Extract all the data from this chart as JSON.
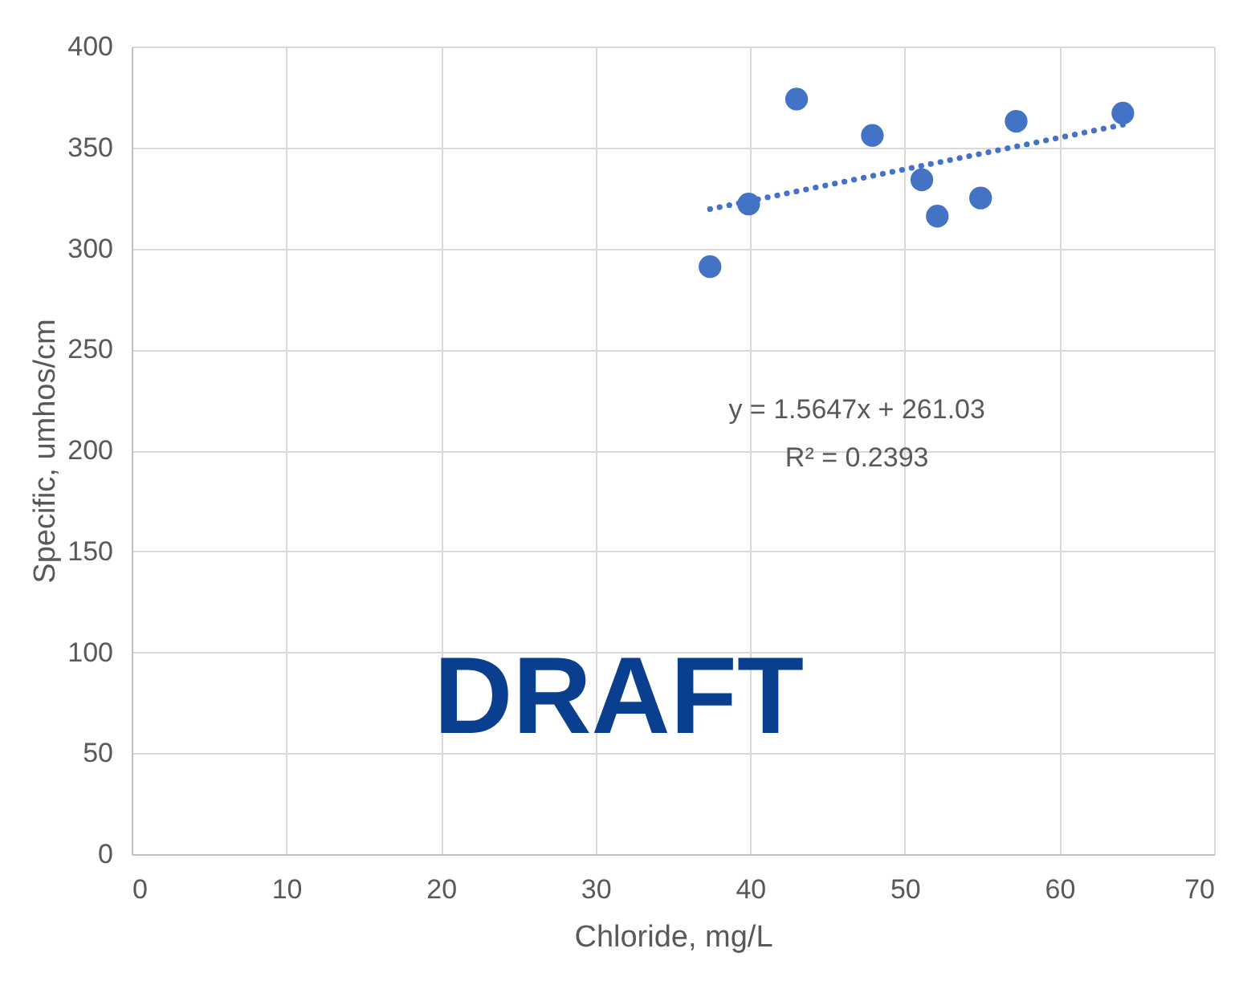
{
  "chart_data": {
    "type": "scatter",
    "xlabel": "Chloride, mg/L",
    "ylabel": "Specific, umhos/cm",
    "xlim": [
      0,
      70
    ],
    "xticks": [
      0,
      10,
      20,
      30,
      40,
      50,
      60,
      70
    ],
    "ylim": [
      0,
      400
    ],
    "yticks": [
      0,
      50,
      100,
      150,
      200,
      250,
      300,
      350,
      400
    ],
    "grid": true,
    "marker": "circle",
    "series": [
      {
        "color": "#4472c4",
        "x": [
          37.4,
          39.9,
          43.0,
          47.9,
          51.1,
          52.1,
          54.9,
          57.2,
          64.1
        ],
        "values": [
          291,
          322,
          374,
          356,
          334,
          316,
          325,
          363,
          367
        ]
      },
      {
        "type": "line",
        "color": "#4472c4",
        "line_style": "dotted",
        "marker": "none",
        "x": [
          37.4,
          64.1
        ],
        "values": [
          319.5,
          361.3
        ]
      }
    ],
    "annotations": [
      "y = 1.5647x + 261.03",
      "R² = 0.2393",
      "DRAFT"
    ]
  }
}
